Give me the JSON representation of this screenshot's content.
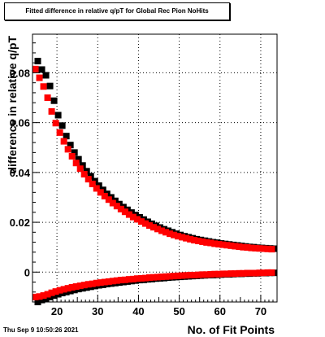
{
  "chart_data": {
    "type": "scatter",
    "title": "Fitted difference in relative q/pT for Global Rec Pion NoHits",
    "xlabel": "No. of Fit Points",
    "ylabel": "difference in relative q/pT",
    "xlim": [
      14,
      74
    ],
    "ylim": [
      -0.012,
      0.0955
    ],
    "x_ticks": [
      20,
      30,
      40,
      50,
      60,
      70
    ],
    "y_ticks": [
      0,
      0.02,
      0.04,
      0.06,
      0.08
    ],
    "y_tick_labels": [
      "0",
      "0.02",
      "0.04",
      "0.06",
      "0.08"
    ],
    "grid": true,
    "series": [
      {
        "color": "#000000",
        "points": [
          [
            15,
            0.0847
          ],
          [
            16,
            0.0813
          ],
          [
            17,
            0.079
          ],
          [
            18,
            0.0747
          ],
          [
            19,
            0.0688
          ],
          [
            20,
            0.063
          ],
          [
            21,
            0.0588
          ],
          [
            22,
            0.0546
          ],
          [
            23,
            0.051
          ],
          [
            24,
            0.048
          ],
          [
            25,
            0.0453
          ],
          [
            26,
            0.0428
          ],
          [
            27,
            0.0405
          ],
          [
            28,
            0.0385
          ],
          [
            29,
            0.0365
          ],
          [
            30,
            0.0347
          ],
          [
            31,
            0.033
          ],
          [
            32,
            0.0314
          ],
          [
            33,
            0.03
          ],
          [
            34,
            0.0286
          ],
          [
            35,
            0.0273
          ],
          [
            36,
            0.0261
          ],
          [
            37,
            0.025
          ],
          [
            38,
            0.0239
          ],
          [
            39,
            0.0229
          ],
          [
            40,
            0.022
          ],
          [
            41,
            0.0211
          ],
          [
            42,
            0.0202
          ],
          [
            43,
            0.0194
          ],
          [
            44,
            0.0186
          ],
          [
            45,
            0.0179
          ],
          [
            46,
            0.0172
          ],
          [
            47,
            0.0166
          ],
          [
            48,
            0.016
          ],
          [
            49,
            0.0154
          ],
          [
            50,
            0.0149
          ],
          [
            51,
            0.0144
          ],
          [
            52,
            0.014
          ],
          [
            53,
            0.0136
          ],
          [
            54,
            0.0132
          ],
          [
            55,
            0.0129
          ],
          [
            56,
            0.0126
          ],
          [
            57,
            0.0123
          ],
          [
            58,
            0.012
          ],
          [
            59,
            0.0118
          ],
          [
            60,
            0.0115
          ],
          [
            61,
            0.0113
          ],
          [
            62,
            0.0111
          ],
          [
            63,
            0.0109
          ],
          [
            64,
            0.0107
          ],
          [
            65,
            0.0105
          ],
          [
            66,
            0.0103
          ],
          [
            67,
            0.0101
          ],
          [
            68,
            0.01
          ],
          [
            69,
            0.0098
          ],
          [
            70,
            0.0097
          ],
          [
            71,
            0.0096
          ],
          [
            72,
            0.0095
          ],
          [
            73,
            0.0094
          ],
          [
            15,
            -0.012
          ],
          [
            16,
            -0.0112
          ],
          [
            17,
            -0.0106
          ],
          [
            18,
            -0.01
          ],
          [
            19,
            -0.0094
          ],
          [
            20,
            -0.0089
          ],
          [
            21,
            -0.0084
          ],
          [
            22,
            -0.008
          ],
          [
            23,
            -0.0076
          ],
          [
            24,
            -0.0072
          ],
          [
            25,
            -0.0068
          ],
          [
            26,
            -0.0065
          ],
          [
            27,
            -0.0062
          ],
          [
            28,
            -0.0059
          ],
          [
            29,
            -0.0056
          ],
          [
            30,
            -0.0053
          ],
          [
            31,
            -0.0051
          ],
          [
            32,
            -0.0048
          ],
          [
            33,
            -0.0046
          ],
          [
            34,
            -0.0044
          ],
          [
            35,
            -0.0042
          ],
          [
            36,
            -0.004
          ],
          [
            37,
            -0.0038
          ],
          [
            38,
            -0.0036
          ],
          [
            39,
            -0.0034
          ],
          [
            40,
            -0.0032
          ],
          [
            41,
            -0.0031
          ],
          [
            42,
            -0.0029
          ],
          [
            43,
            -0.0028
          ],
          [
            44,
            -0.0026
          ],
          [
            45,
            -0.0025
          ],
          [
            46,
            -0.0024
          ],
          [
            47,
            -0.0022
          ],
          [
            48,
            -0.0021
          ],
          [
            49,
            -0.002
          ],
          [
            50,
            -0.0019
          ],
          [
            51,
            -0.0018
          ],
          [
            52,
            -0.0017
          ],
          [
            53,
            -0.0016
          ],
          [
            54,
            -0.0015
          ],
          [
            55,
            -0.0014
          ],
          [
            56,
            -0.0013
          ],
          [
            57,
            -0.0012
          ],
          [
            58,
            -0.0012
          ],
          [
            59,
            -0.0011
          ],
          [
            60,
            -0.001
          ],
          [
            61,
            -0.0009
          ],
          [
            62,
            -0.0009
          ],
          [
            63,
            -0.0008
          ],
          [
            64,
            -0.0007
          ],
          [
            65,
            -0.0007
          ],
          [
            66,
            -0.0006
          ],
          [
            67,
            -0.0006
          ],
          [
            68,
            -0.0005
          ],
          [
            69,
            -0.0005
          ],
          [
            70,
            -0.0004
          ],
          [
            71,
            -0.0004
          ],
          [
            72,
            -0.0003
          ],
          [
            73,
            -0.0003
          ]
        ]
      },
      {
        "color": "#ff0000",
        "points": [
          [
            15,
            0.0815
          ],
          [
            16,
            0.078
          ],
          [
            17,
            0.0745
          ],
          [
            18,
            0.07
          ],
          [
            19,
            0.0645
          ],
          [
            20,
            0.0598
          ],
          [
            21,
            0.056
          ],
          [
            22,
            0.0525
          ],
          [
            23,
            0.0493
          ],
          [
            24,
            0.0465
          ],
          [
            25,
            0.0438
          ],
          [
            26,
            0.0415
          ],
          [
            27,
            0.0393
          ],
          [
            28,
            0.0373
          ],
          [
            29,
            0.0354
          ],
          [
            30,
            0.0336
          ],
          [
            31,
            0.032
          ],
          [
            32,
            0.0305
          ],
          [
            33,
            0.0291
          ],
          [
            34,
            0.0277
          ],
          [
            35,
            0.0265
          ],
          [
            36,
            0.0253
          ],
          [
            37,
            0.0242
          ],
          [
            38,
            0.0231
          ],
          [
            39,
            0.0221
          ],
          [
            40,
            0.0212
          ],
          [
            41,
            0.0203
          ],
          [
            42,
            0.0195
          ],
          [
            43,
            0.0187
          ],
          [
            44,
            0.018
          ],
          [
            45,
            0.0173
          ],
          [
            46,
            0.0166
          ],
          [
            47,
            0.016
          ],
          [
            48,
            0.0154
          ],
          [
            49,
            0.0149
          ],
          [
            50,
            0.0144
          ],
          [
            51,
            0.014
          ],
          [
            52,
            0.0136
          ],
          [
            53,
            0.0132
          ],
          [
            54,
            0.0128
          ],
          [
            55,
            0.0125
          ],
          [
            56,
            0.0122
          ],
          [
            57,
            0.0119
          ],
          [
            58,
            0.0117
          ],
          [
            59,
            0.0114
          ],
          [
            60,
            0.0112
          ],
          [
            61,
            0.011
          ],
          [
            62,
            0.0108
          ],
          [
            63,
            0.0106
          ],
          [
            64,
            0.0104
          ],
          [
            65,
            0.0102
          ],
          [
            66,
            0.01
          ],
          [
            67,
            0.0099
          ],
          [
            68,
            0.0097
          ],
          [
            69,
            0.0096
          ],
          [
            70,
            0.0095
          ],
          [
            71,
            0.0094
          ],
          [
            72,
            0.0093
          ],
          [
            73,
            0.0092
          ],
          [
            15,
            -0.01
          ],
          [
            16,
            -0.0098
          ],
          [
            17,
            -0.0094
          ],
          [
            18,
            -0.0089
          ],
          [
            19,
            -0.0083
          ],
          [
            20,
            -0.0078
          ],
          [
            21,
            -0.0073
          ],
          [
            22,
            -0.0069
          ],
          [
            23,
            -0.0065
          ],
          [
            24,
            -0.0061
          ],
          [
            25,
            -0.0058
          ],
          [
            26,
            -0.0055
          ],
          [
            27,
            -0.0052
          ],
          [
            28,
            -0.0049
          ],
          [
            29,
            -0.0047
          ],
          [
            30,
            -0.0044
          ],
          [
            31,
            -0.0042
          ],
          [
            32,
            -0.004
          ],
          [
            33,
            -0.0038
          ],
          [
            34,
            -0.0036
          ],
          [
            35,
            -0.0034
          ],
          [
            36,
            -0.0032
          ],
          [
            37,
            -0.0031
          ],
          [
            38,
            -0.0029
          ],
          [
            39,
            -0.0028
          ],
          [
            40,
            -0.0026
          ],
          [
            41,
            -0.0025
          ],
          [
            42,
            -0.0024
          ],
          [
            43,
            -0.0022
          ],
          [
            44,
            -0.0021
          ],
          [
            45,
            -0.002
          ],
          [
            46,
            -0.0019
          ],
          [
            47,
            -0.0018
          ],
          [
            48,
            -0.0017
          ],
          [
            49,
            -0.0016
          ],
          [
            50,
            -0.0015
          ],
          [
            51,
            -0.0014
          ],
          [
            52,
            -0.0013
          ],
          [
            53,
            -0.0012
          ],
          [
            54,
            -0.0012
          ],
          [
            55,
            -0.0011
          ],
          [
            56,
            -0.001
          ],
          [
            57,
            -0.001
          ],
          [
            58,
            -0.0009
          ],
          [
            59,
            -0.0008
          ],
          [
            60,
            -0.0008
          ],
          [
            61,
            -0.0007
          ],
          [
            62,
            -0.0007
          ],
          [
            63,
            -0.0006
          ],
          [
            64,
            -0.0006
          ],
          [
            65,
            -0.0005
          ],
          [
            66,
            -0.0005
          ],
          [
            67,
            -0.0004
          ],
          [
            68,
            -0.0004
          ],
          [
            69,
            -0.0004
          ],
          [
            70,
            -0.0003
          ],
          [
            71,
            -0.0003
          ],
          [
            72,
            -0.0002
          ],
          [
            73,
            -0.0002
          ]
        ]
      }
    ]
  },
  "footer": {
    "timestamp": "Thu Sep  9 10:50:26 2021"
  }
}
